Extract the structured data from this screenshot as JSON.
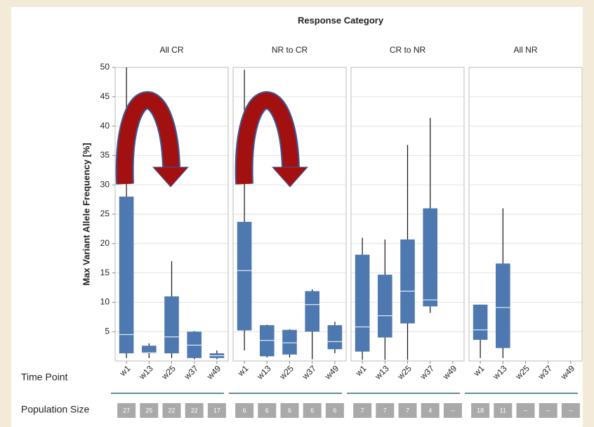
{
  "title": "Response Category",
  "x_label": "Time Point",
  "population_label": "Population Size",
  "chart_data": [
    {
      "type": "box",
      "title": "All CR",
      "y_label": "Max Variant Allele Frequency [%]",
      "ylim": [
        0,
        50
      ],
      "yticks": [
        5,
        10,
        15,
        20,
        25,
        30,
        35,
        40,
        45,
        50
      ],
      "grid": true,
      "color": "#4e79b0",
      "categories": [
        "w1",
        "w13",
        "w25",
        "w37",
        "w49"
      ],
      "min": [
        0.5,
        0.5,
        0.5,
        0.3,
        0.3
      ],
      "q1": [
        1.3,
        1.3,
        1.3,
        0.5,
        0.5
      ],
      "median": [
        4.5,
        1.4,
        4.1,
        2.7,
        0.9
      ],
      "q3": [
        28,
        2.6,
        11,
        5,
        1.3
      ],
      "max": [
        50,
        3,
        17,
        5.1,
        1.8
      ],
      "population": [
        27,
        25,
        22,
        22,
        17
      ]
    },
    {
      "type": "box",
      "title": "NR to CR",
      "color": "#4e79b0",
      "categories": [
        "w1",
        "w13",
        "w25",
        "w37",
        "w49"
      ],
      "min": [
        1.8,
        0.6,
        0.6,
        0.3,
        1.3
      ],
      "q1": [
        5.2,
        0.8,
        1.1,
        5,
        2
      ],
      "median": [
        15.4,
        3.5,
        3.1,
        9.6,
        3.3
      ],
      "q3": [
        23.7,
        6.1,
        5.3,
        11.9,
        6.1
      ],
      "max": [
        49.6,
        6.2,
        5.4,
        12.2,
        6.7
      ],
      "population": [
        6,
        6,
        6,
        6,
        6
      ]
    },
    {
      "type": "box",
      "title": "CR to NR",
      "color": "#4e79b0",
      "categories": [
        "w1",
        "w13",
        "w25",
        "w37",
        "w49"
      ],
      "min": [
        0.2,
        0.2,
        0.2,
        8.2,
        null
      ],
      "q1": [
        1.6,
        4,
        6.4,
        9.3,
        null
      ],
      "median": [
        5.8,
        7.7,
        11.9,
        10.4,
        null
      ],
      "q3": [
        18.1,
        14.7,
        20.7,
        26,
        null
      ],
      "max": [
        21,
        20.7,
        36.8,
        41.4,
        null
      ],
      "population": [
        7,
        7,
        7,
        4,
        "--"
      ]
    },
    {
      "type": "box",
      "title": "All NR",
      "color": "#4e79b0",
      "categories": [
        "w1",
        "w13",
        "w25",
        "w37",
        "w49"
      ],
      "min": [
        0.5,
        0.5,
        null,
        null,
        null
      ],
      "q1": [
        3.6,
        2.2,
        null,
        null,
        null
      ],
      "median": [
        5.3,
        9.1,
        null,
        null,
        null
      ],
      "q3": [
        9.6,
        16.6,
        null,
        null,
        null
      ],
      "max": [
        9.6,
        26,
        null,
        null,
        null
      ],
      "population": [
        18,
        11,
        "--",
        "--",
        "--"
      ]
    }
  ]
}
